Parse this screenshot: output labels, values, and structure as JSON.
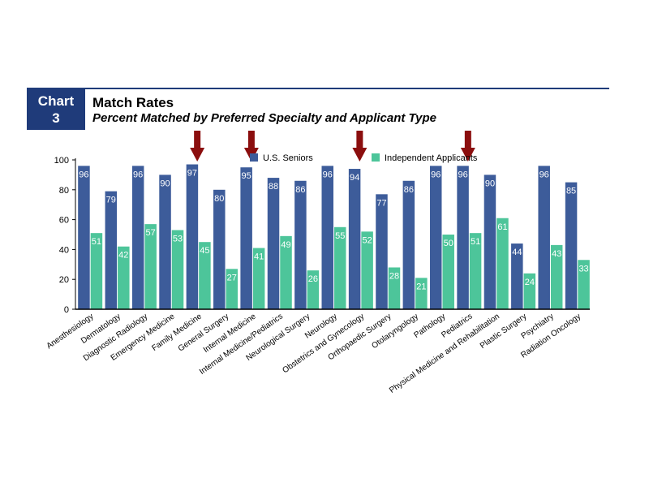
{
  "header": {
    "badge_line1": "Chart",
    "badge_line2": "3",
    "title": "Match Rates",
    "subtitle": "Percent Matched by Preferred Specialty and Applicant Type"
  },
  "colors": {
    "us_seniors": "#3d5c9a",
    "independent": "#4dc59a",
    "arrow": "#8b0e0e",
    "header_blue": "#1f3b7a"
  },
  "highlighted_categories": [
    "Family Medicine",
    "Internal Medicine",
    "Obstetrics and Gynecology",
    "Pediatrics"
  ],
  "chart_data": {
    "type": "bar",
    "categories": [
      "Anesthesiology",
      "Dermatology",
      "Diagnostic Radiology",
      "Emergency Medicine",
      "Family Medicine",
      "General Surgery",
      "Internal Medicine",
      "Internal Medicine/Pediatrics",
      "Neurological Surgery",
      "Neurology",
      "Obstetrics and Gynecology",
      "Orthopaedic Surgery",
      "Otolaryngology",
      "Pathology",
      "Pediatrics",
      "Physical Medicine and Rehabilitation",
      "Plastic Surgery",
      "Psychiatry",
      "Radiation Oncology"
    ],
    "series": [
      {
        "name": "U.S. Seniors",
        "values": [
          96,
          79,
          96,
          90,
          97,
          80,
          95,
          88,
          86,
          96,
          94,
          77,
          86,
          96,
          96,
          90,
          44,
          96,
          85
        ]
      },
      {
        "name": "Independent Applicants",
        "values": [
          51,
          42,
          57,
          53,
          45,
          27,
          41,
          49,
          26,
          55,
          52,
          28,
          21,
          50,
          51,
          61,
          24,
          43,
          33
        ]
      }
    ],
    "yticks": [
      0,
      20,
      40,
      60,
      80,
      100
    ],
    "ylim": [
      0,
      100
    ],
    "legend_position": "top"
  }
}
